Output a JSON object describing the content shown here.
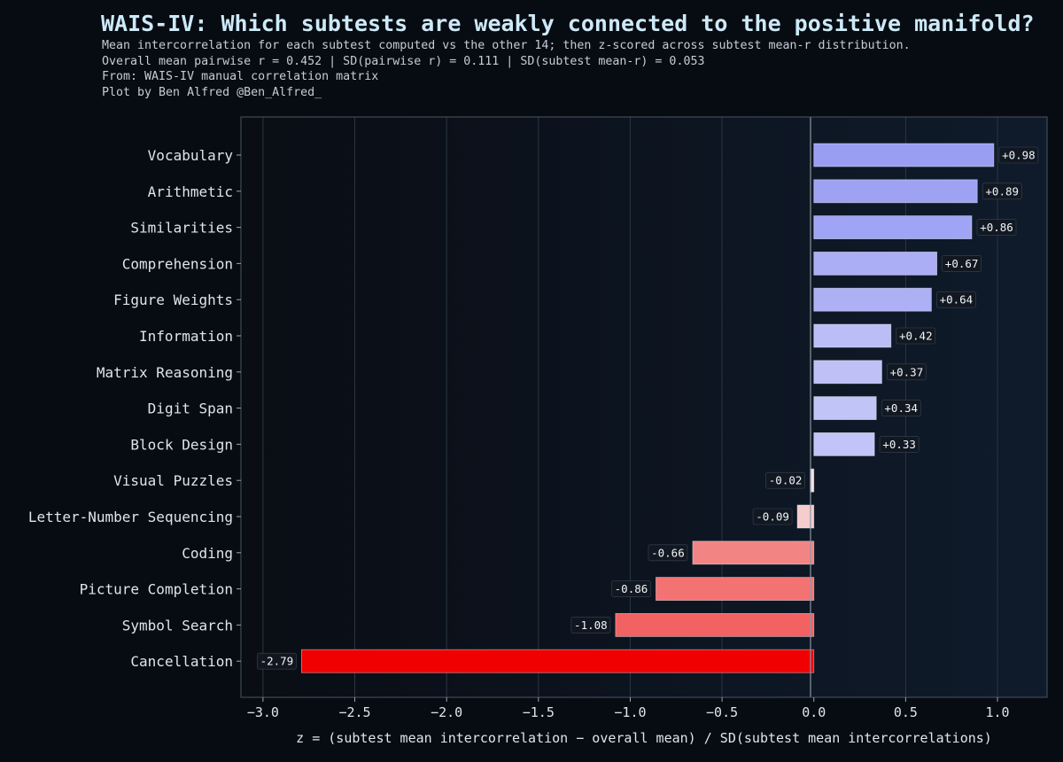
{
  "chart_data": {
    "type": "bar",
    "orientation": "horizontal",
    "title": "WAIS-IV: Which subtests are weakly connected to the positive manifold?",
    "subtitle_lines": [
      "Mean intercorrelation for each subtest computed vs the other 14; then z-scored across subtest mean-r distribution.",
      "Overall mean pairwise r = 0.452 | SD(pairwise r) = 0.111 | SD(subtest mean-r) = 0.053",
      "From: WAIS-IV manual correlation matrix",
      "Plot by Ben Alfred @Ben_Alfred_"
    ],
    "categories": [
      "Vocabulary",
      "Arithmetic",
      "Similarities",
      "Comprehension",
      "Figure Weights",
      "Information",
      "Matrix Reasoning",
      "Digit Span",
      "Block Design",
      "Visual Puzzles",
      "Letter-Number Sequencing",
      "Coding",
      "Picture Completion",
      "Symbol Search",
      "Cancellation"
    ],
    "values": [
      0.98,
      0.89,
      0.86,
      0.67,
      0.64,
      0.42,
      0.37,
      0.34,
      0.33,
      -0.02,
      -0.09,
      -0.66,
      -0.86,
      -1.08,
      -2.79
    ],
    "value_labels": [
      "+0.98",
      "+0.89",
      "+0.86",
      "+0.67",
      "+0.64",
      "+0.42",
      "+0.37",
      "+0.34",
      "+0.33",
      "-0.02",
      "-0.09",
      "-0.66",
      "-0.86",
      "-1.08",
      "-2.79"
    ],
    "xlabel": "z = (subtest mean intercorrelation − overall mean) / SD(subtest mean intercorrelations)",
    "ylabel": "",
    "xlim": [
      -3.12,
      1.27
    ],
    "xticks": [
      -3.0,
      -2.5,
      -2.0,
      -1.5,
      -1.0,
      -0.5,
      0.0,
      0.5,
      1.0
    ],
    "xtick_labels": [
      "−3.0",
      "−2.5",
      "−2.0",
      "−1.5",
      "−1.0",
      "−0.5",
      "0.0",
      "0.5",
      "1.0"
    ],
    "grid": true,
    "colors": {
      "positive_max": "#9a9ef3",
      "positive_min": "#f3f3fb",
      "negative_min": "#f6f2f2",
      "negative_max": "#f00000",
      "background": "#070b12",
      "plot_left": "#0a0e16",
      "plot_right": "#0f1b2b",
      "grid": "#2a3644",
      "frame": "#4a5563",
      "text": "#dfe5ec",
      "title": "#cde9f7"
    }
  }
}
